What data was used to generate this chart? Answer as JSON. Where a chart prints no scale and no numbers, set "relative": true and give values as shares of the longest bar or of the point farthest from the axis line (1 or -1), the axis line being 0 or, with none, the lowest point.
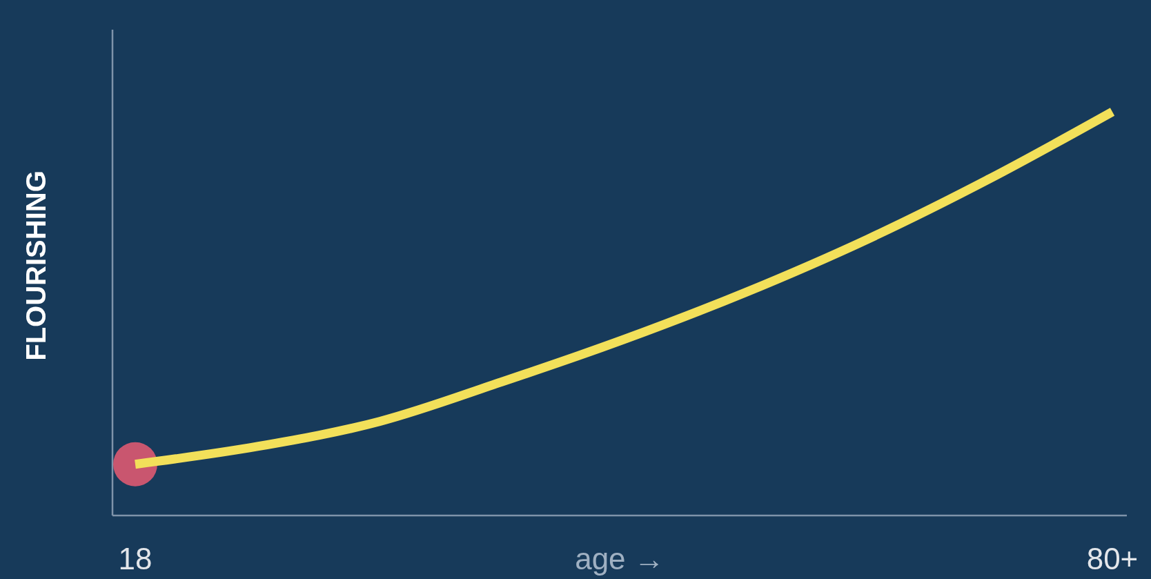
{
  "chart_data": {
    "type": "line",
    "relative": true,
    "ylabel": "FLOURISHING",
    "xlabel": "age →",
    "categories": [
      "18",
      null,
      null,
      null,
      null,
      null,
      null,
      null,
      "80+"
    ],
    "series": [
      {
        "type": "scatter",
        "marker": "circle",
        "color": "#c9566f",
        "x": [
          "18"
        ],
        "values": [
          0.127
        ]
      },
      {
        "color": "#f2e05a",
        "values": [
          0.127,
          0.171,
          0.233,
          0.331,
          0.436,
          0.553,
          0.685,
          0.835,
          1
        ]
      }
    ]
  }
}
